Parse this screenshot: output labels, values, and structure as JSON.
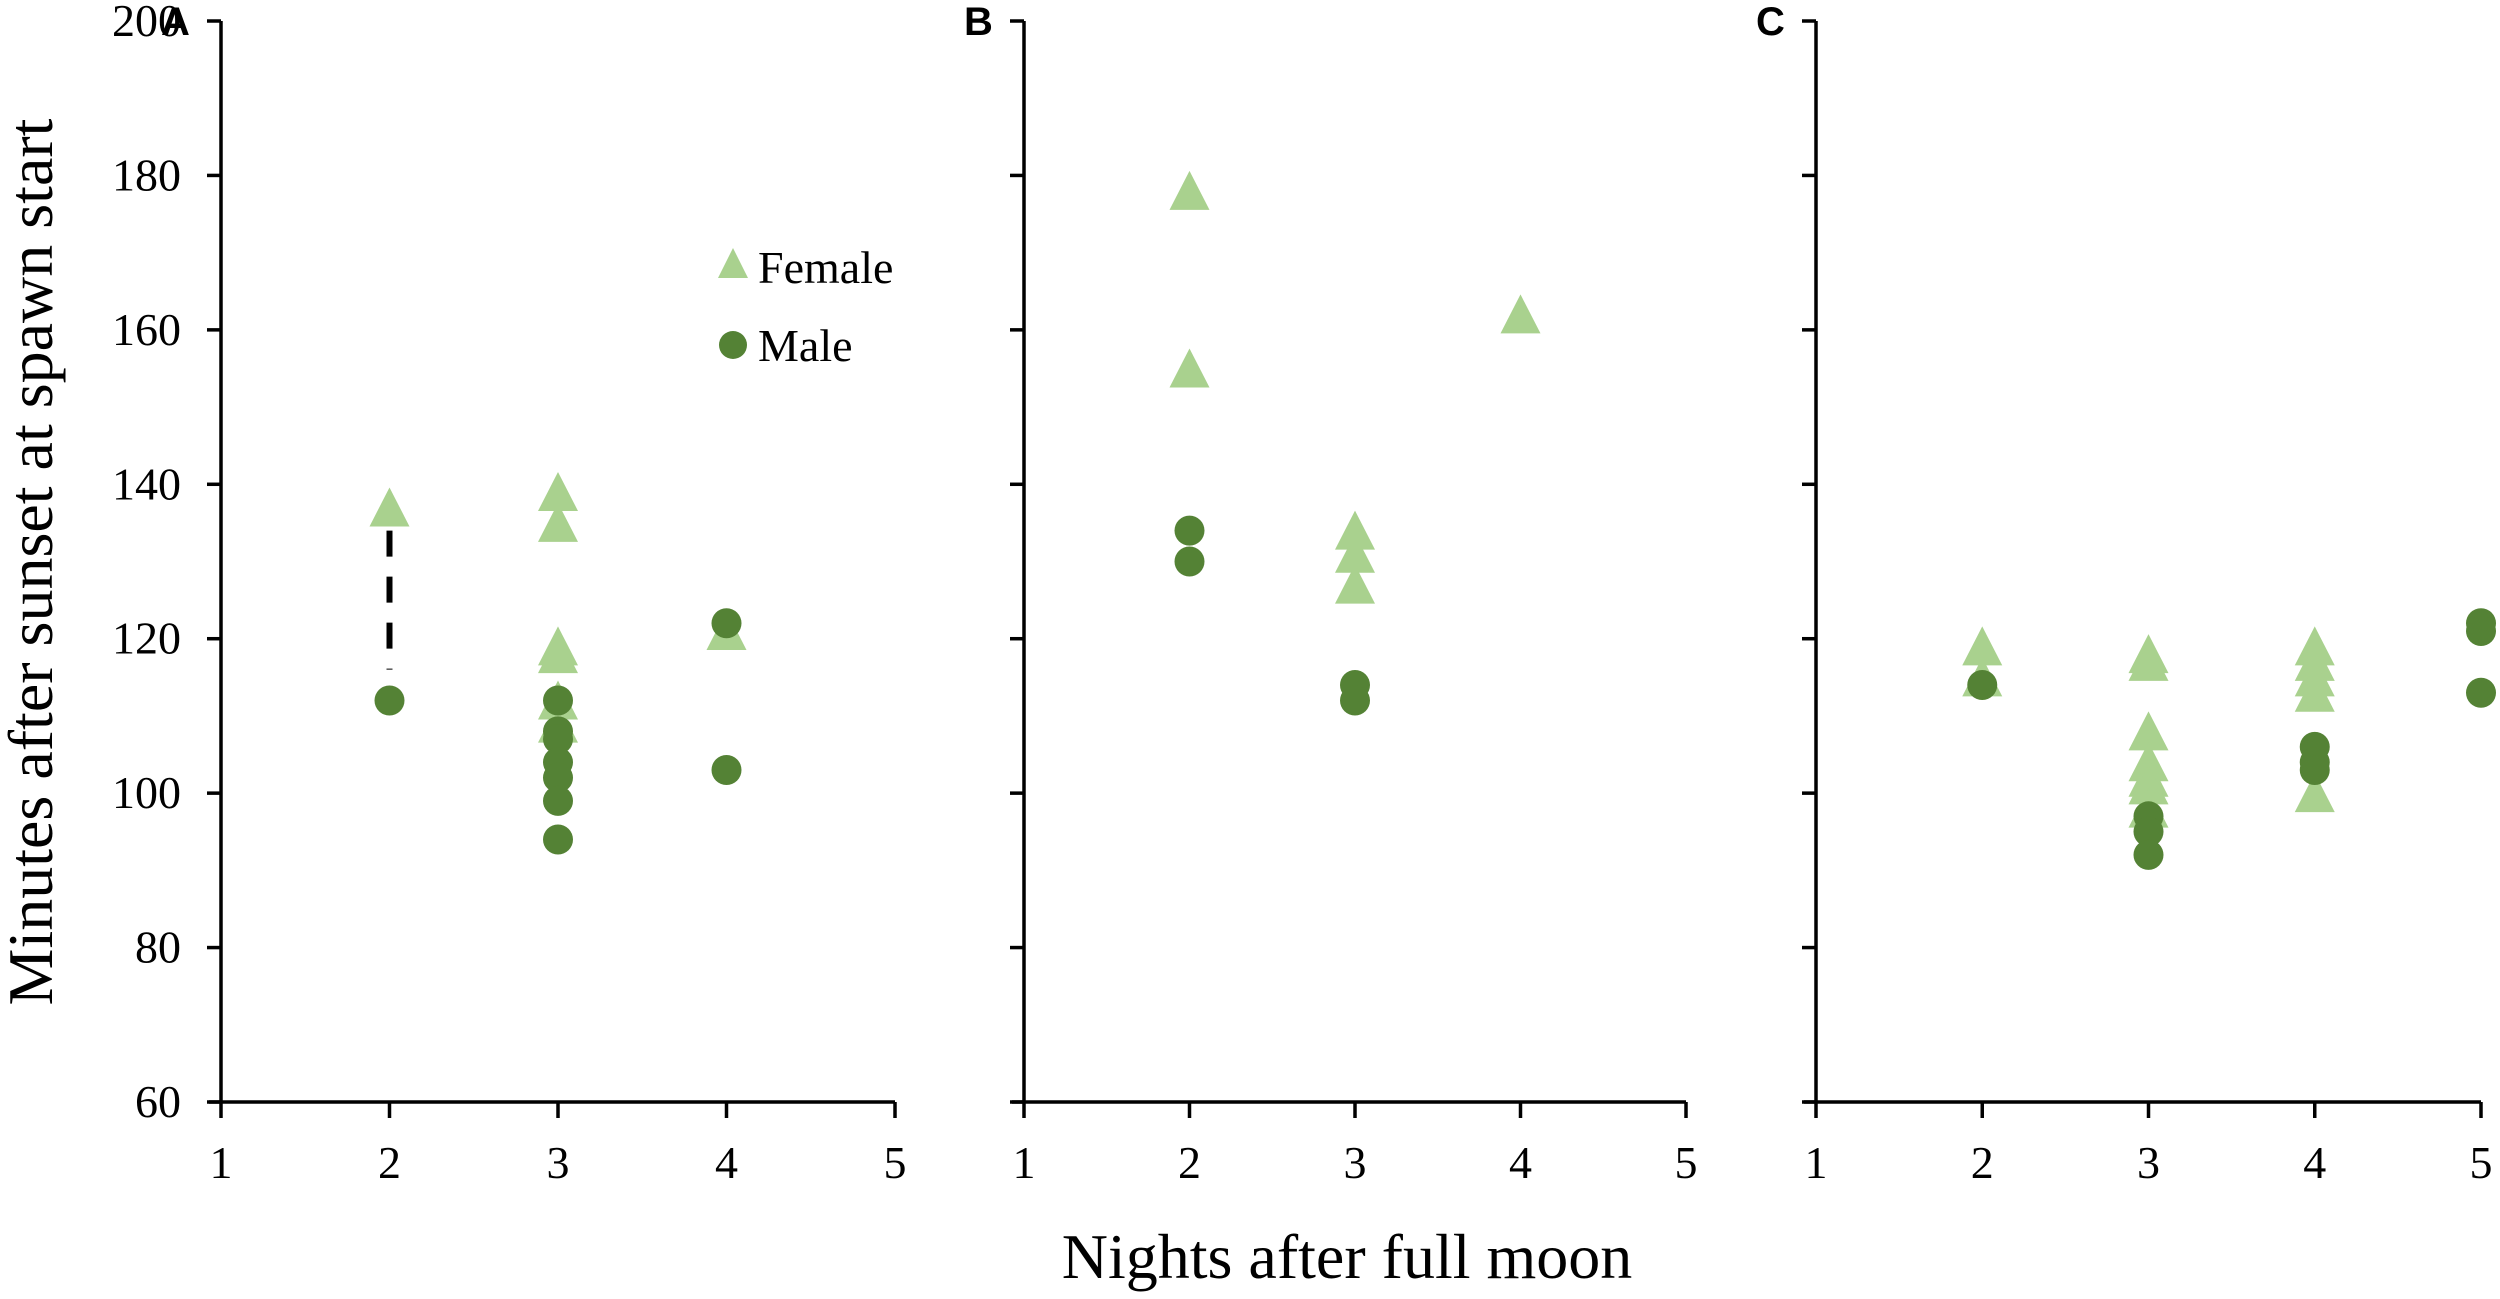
{
  "figure": {
    "y_axis_title": "Minutes after sunset at spawn start",
    "x_axis_title": "Nights after full moon",
    "legend": [
      {
        "label": "Female",
        "marker": "triangle",
        "color": "#a9d18e"
      },
      {
        "label": "Male",
        "marker": "circle",
        "color": "#548235"
      }
    ],
    "colors": {
      "female": "#a9d18e",
      "male": "#548235",
      "axis": "#000000",
      "connector": "#000000"
    }
  },
  "chart_data": [
    {
      "type": "scatter",
      "panel": "A",
      "title": "",
      "xlabel": "Nights after full moon",
      "ylabel": "Minutes after sunset at spawn start",
      "xlim": [
        1,
        5
      ],
      "ylim": [
        60,
        200
      ],
      "xticks": [
        1,
        2,
        3,
        4,
        5
      ],
      "yticks": [
        60,
        80,
        100,
        120,
        140,
        160,
        180,
        200
      ],
      "grid": false,
      "legend_position": "upper right (inside panel A)",
      "series": [
        {
          "name": "Female",
          "marker": "triangle",
          "points": [
            [
              2,
              137
            ],
            [
              3,
              139
            ],
            [
              3,
              135
            ],
            [
              3,
              119
            ],
            [
              3,
              118
            ],
            [
              3,
              112
            ],
            [
              3,
              109
            ],
            [
              4,
              121
            ]
          ]
        },
        {
          "name": "Male",
          "marker": "circle",
          "points": [
            [
              2,
              112
            ],
            [
              3,
              112
            ],
            [
              3,
              108
            ],
            [
              3,
              107
            ],
            [
              3,
              104
            ],
            [
              3,
              102
            ],
            [
              3,
              99
            ],
            [
              3,
              94
            ],
            [
              4,
              122
            ],
            [
              4,
              103
            ]
          ]
        }
      ],
      "annotations": [
        {
          "type": "dashed-line",
          "x": 2,
          "from": 134,
          "to": 116,
          "description": "dashed connector between female and male at night 2"
        }
      ]
    },
    {
      "type": "scatter",
      "panel": "B",
      "title": "",
      "xlabel": "Nights after full moon",
      "ylabel": "Minutes after sunset at spawn start",
      "xlim": [
        1,
        5
      ],
      "ylim": [
        60,
        200
      ],
      "xticks": [
        1,
        2,
        3,
        4,
        5
      ],
      "yticks": [
        60,
        80,
        100,
        120,
        140,
        160,
        180,
        200
      ],
      "grid": false,
      "series": [
        {
          "name": "Female",
          "marker": "triangle",
          "points": [
            [
              2,
              178
            ],
            [
              2,
              155
            ],
            [
              3,
              134
            ],
            [
              3,
              131
            ],
            [
              3,
              127
            ],
            [
              4,
              162
            ]
          ]
        },
        {
          "name": "Male",
          "marker": "circle",
          "points": [
            [
              2,
              134
            ],
            [
              2,
              130
            ],
            [
              3,
              114
            ],
            [
              3,
              112
            ]
          ]
        }
      ]
    },
    {
      "type": "scatter",
      "panel": "C",
      "title": "",
      "xlabel": "Nights after full moon",
      "ylabel": "Minutes after sunset at spawn start",
      "xlim": [
        1,
        5
      ],
      "ylim": [
        60,
        200
      ],
      "xticks": [
        1,
        2,
        3,
        4,
        5
      ],
      "yticks": [
        60,
        80,
        100,
        120,
        140,
        160,
        180,
        200
      ],
      "grid": false,
      "series": [
        {
          "name": "Female",
          "marker": "triangle",
          "points": [
            [
              2,
              119
            ],
            [
              2,
              115
            ],
            [
              3,
              118
            ],
            [
              3,
              117
            ],
            [
              3,
              108
            ],
            [
              3,
              104
            ],
            [
              3,
              102
            ],
            [
              3,
              101
            ],
            [
              3,
              98
            ],
            [
              4,
              119
            ],
            [
              4,
              117
            ],
            [
              4,
              115
            ],
            [
              4,
              113
            ],
            [
              4,
              100
            ]
          ]
        },
        {
          "name": "Male",
          "marker": "circle",
          "points": [
            [
              2,
              114
            ],
            [
              3,
              97
            ],
            [
              3,
              95
            ],
            [
              3,
              92
            ],
            [
              4,
              106
            ],
            [
              4,
              104
            ],
            [
              4,
              103
            ],
            [
              5,
              122
            ],
            [
              5,
              121
            ],
            [
              5,
              113
            ]
          ]
        }
      ]
    }
  ]
}
